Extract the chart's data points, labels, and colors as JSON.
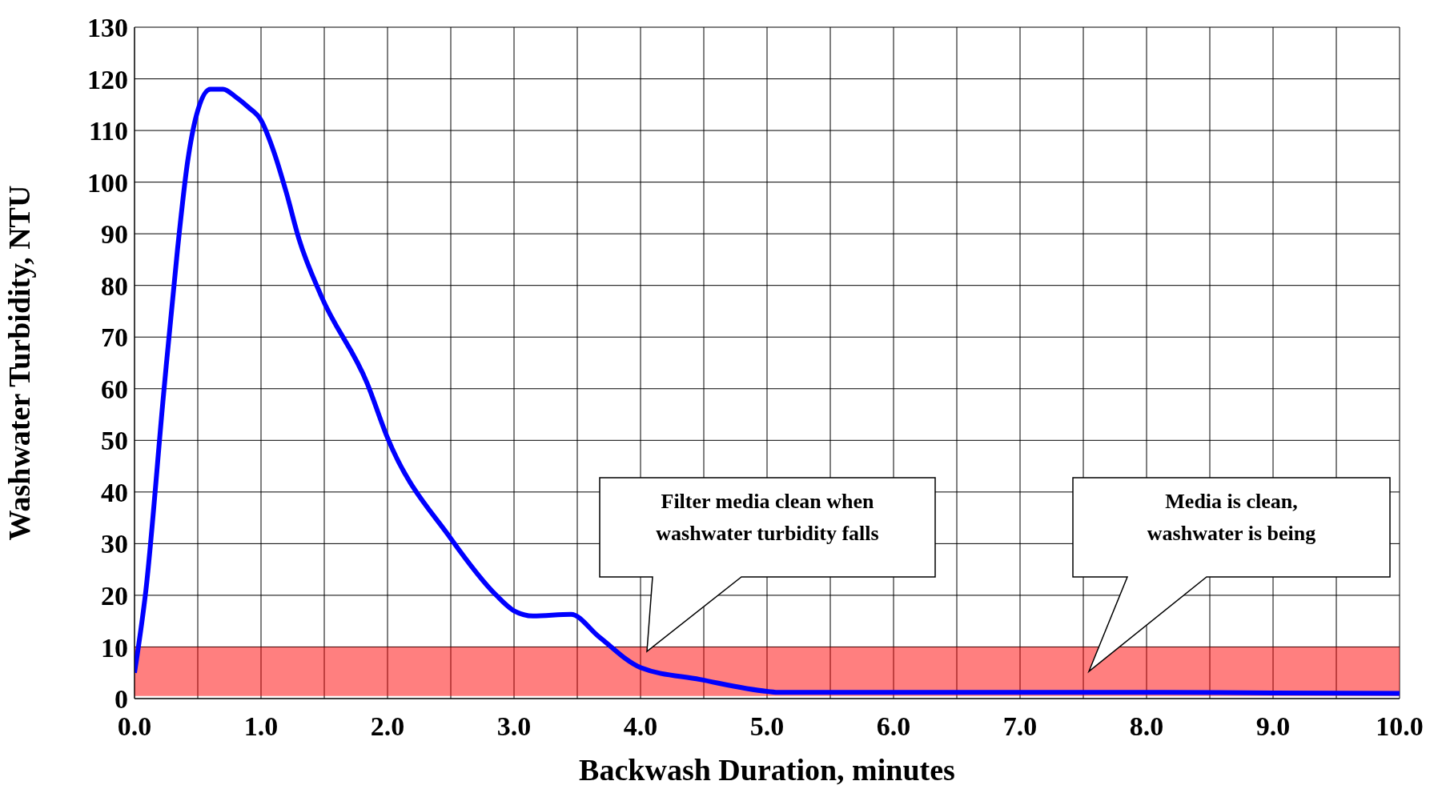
{
  "chart_data": {
    "type": "line",
    "xlabel": "Backwash Duration, minutes",
    "ylabel": "Washwater Turbidity, NTU",
    "x": [
      0,
      0.09,
      0.23,
      0.34,
      0.42,
      0.49,
      0.6,
      0.7,
      0.8,
      0.9,
      1.0,
      1.1,
      1.2,
      1.3,
      1.475,
      1.84,
      2.0,
      2.5,
      2.86,
      3.0,
      3.15,
      3.45,
      3.67,
      4.0,
      4.47,
      5.0,
      5.1,
      6.0,
      7.0,
      8.0,
      9.0,
      10.0
    ],
    "series": [
      {
        "color": "#0000ff",
        "values": [
          5,
          21,
          59,
          87,
          104,
          113,
          118,
          118,
          116.5,
          114.5,
          112,
          106,
          98,
          89,
          78,
          61,
          50.5,
          31,
          20,
          17,
          16,
          16.3,
          12,
          6,
          3.7,
          1.4,
          1.2,
          1.2,
          1.2,
          1.2,
          1.1,
          1.0
        ]
      }
    ],
    "xlim": [
      0,
      10
    ],
    "xticks": [
      {
        "value": 0,
        "label": "0.0"
      },
      {
        "value": 0.5,
        "label": null
      },
      {
        "value": 1,
        "label": "1.0"
      },
      {
        "value": 1.5,
        "label": null
      },
      {
        "value": 2,
        "label": "2.0"
      },
      {
        "value": 2.5,
        "label": null
      },
      {
        "value": 3,
        "label": "3.0"
      },
      {
        "value": 3.5,
        "label": null
      },
      {
        "value": 4,
        "label": "4.0"
      },
      {
        "value": 4.5,
        "label": null
      },
      {
        "value": 5,
        "label": "5.0"
      },
      {
        "value": 5.5,
        "label": null
      },
      {
        "value": 6,
        "label": "6.0"
      },
      {
        "value": 6.5,
        "label": null
      },
      {
        "value": 7,
        "label": "7.0"
      },
      {
        "value": 7.5,
        "label": null
      },
      {
        "value": 8,
        "label": "8.0"
      },
      {
        "value": 8.5,
        "label": null
      },
      {
        "value": 9,
        "label": "9.0"
      },
      {
        "value": 9.5,
        "label": null
      },
      {
        "value": 10,
        "label": "10.0"
      }
    ],
    "ylim": [
      0,
      130
    ],
    "yticks": [
      0,
      10,
      20,
      30,
      40,
      50,
      60,
      70,
      80,
      90,
      100,
      110,
      120,
      130
    ],
    "grid": true,
    "marker": "none",
    "line_style": "solid",
    "bands": [
      {
        "axis": "y",
        "from": 0.5,
        "to": 10,
        "color": "#ff0000"
      }
    ],
    "annotations": [
      "Filter media clean when\nwashwater turbidity falls",
      "Media is clean,\nwashwater is being"
    ]
  }
}
